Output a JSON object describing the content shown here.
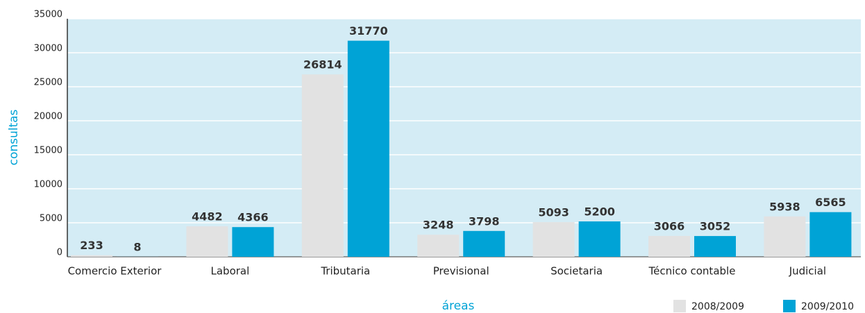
{
  "chart_data": {
    "type": "bar",
    "xlabel": "áreas",
    "ylabel": "consultas",
    "categories": [
      "Comercio Exterior",
      "Laboral",
      "Tributaria",
      "Previsional",
      "Societaria",
      "Técnico contable",
      "Judicial"
    ],
    "series": [
      {
        "name": "2008/2009",
        "color": "#e2e2e2",
        "values": [
          233,
          4482,
          26814,
          3248,
          5093,
          3066,
          5938
        ]
      },
      {
        "name": "2009/2010",
        "color": "#00a3d6",
        "values": [
          8,
          4366,
          31770,
          3798,
          5200,
          3052,
          6565
        ]
      }
    ],
    "ylim": [
      0,
      35000
    ],
    "yticks": [
      0,
      5000,
      10000,
      15000,
      20000,
      25000,
      30000,
      35000
    ],
    "grid": true,
    "legend": "bottom-right"
  }
}
